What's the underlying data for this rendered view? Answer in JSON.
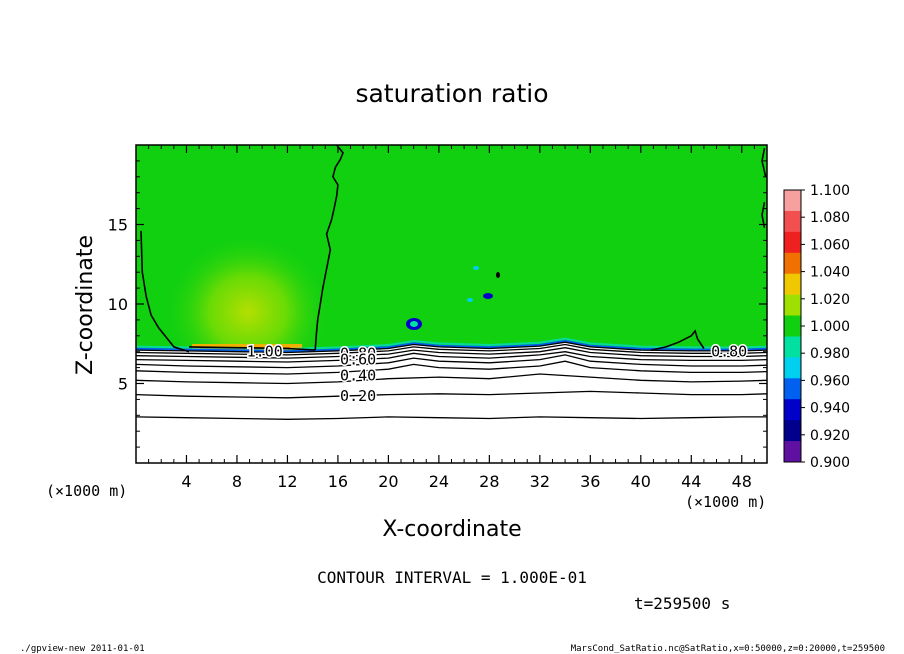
{
  "chart_data": {
    "type": "heatmap",
    "title": "saturation ratio",
    "xlabel": "X-coordinate",
    "ylabel": "Z-coordinate",
    "x_unit_left": "(×1000 m)",
    "x_unit_right": "(×1000 m)",
    "xlim": [
      0,
      50
    ],
    "ylim": [
      0,
      20
    ],
    "x_ticks": [
      4,
      8,
      12,
      16,
      20,
      24,
      28,
      32,
      36,
      40,
      44,
      48
    ],
    "x_tick_labels": [
      "4",
      "8",
      "12",
      "16",
      "20",
      "24",
      "28",
      "32",
      "36",
      "40",
      "44",
      "48"
    ],
    "y_ticks": [
      5,
      10,
      15
    ],
    "y_tick_labels": [
      "5",
      "10",
      "15"
    ],
    "colorbar": {
      "levels": [
        1.1,
        1.08,
        1.06,
        1.04,
        1.02,
        1.0,
        0.98,
        0.96,
        0.94,
        0.92,
        0.9
      ],
      "labels": [
        "1.100",
        "1.080",
        "1.060",
        "1.040",
        "1.020",
        "1.000",
        "0.980",
        "0.960",
        "0.940",
        "0.920",
        "0.900"
      ],
      "colors": [
        "#f7a0a0",
        "#f25050",
        "#ee2020",
        "#f07000",
        "#f0c800",
        "#a0e000",
        "#10d010",
        "#00e0a0",
        "#00d0f0",
        "#0060f0",
        "#0000c8",
        "#00008c",
        "#6010a0"
      ]
    },
    "contour_interval_text": "CONTOUR INTERVAL = 1.000E-01",
    "contour_labels": [
      {
        "text": "1.00",
        "x": 10.2,
        "z": 7.0
      },
      {
        "text": "0.80",
        "x": 17.6,
        "z": 6.9
      },
      {
        "text": "0.60",
        "x": 17.6,
        "z": 6.5
      },
      {
        "text": "0.40",
        "x": 17.6,
        "z": 5.5
      },
      {
        "text": "0.20",
        "x": 17.6,
        "z": 4.2
      },
      {
        "text": "0.80",
        "x": 47.0,
        "z": 7.0
      }
    ],
    "contours": [
      {
        "level": 0.1,
        "x": [
          0,
          4,
          8,
          12,
          16,
          20,
          24,
          28,
          32,
          36,
          40,
          44,
          48,
          50
        ],
        "z": [
          2.9,
          2.85,
          2.8,
          2.75,
          2.8,
          2.9,
          2.85,
          2.8,
          2.9,
          2.85,
          2.8,
          2.85,
          2.9,
          2.9
        ]
      },
      {
        "level": 0.2,
        "x": [
          0,
          4,
          8,
          12,
          16,
          20,
          24,
          28,
          32,
          36,
          40,
          44,
          48,
          50
        ],
        "z": [
          4.3,
          4.2,
          4.15,
          4.1,
          4.2,
          4.3,
          4.35,
          4.3,
          4.4,
          4.5,
          4.4,
          4.3,
          4.3,
          4.35
        ]
      },
      {
        "level": 0.3,
        "x": [
          0,
          4,
          8,
          12,
          16,
          20,
          24,
          28,
          32,
          36,
          40,
          44,
          48,
          50
        ],
        "z": [
          5.2,
          5.1,
          5.05,
          5.0,
          5.1,
          5.3,
          5.4,
          5.3,
          5.6,
          5.4,
          5.2,
          5.1,
          5.15,
          5.2
        ]
      },
      {
        "level": 0.4,
        "x": [
          0,
          4,
          8,
          12,
          16,
          20,
          22,
          24,
          28,
          32,
          34,
          36,
          40,
          44,
          48,
          50
        ],
        "z": [
          5.8,
          5.7,
          5.65,
          5.6,
          5.7,
          5.9,
          6.2,
          6.0,
          5.9,
          6.1,
          6.4,
          6.0,
          5.8,
          5.7,
          5.7,
          5.75
        ]
      },
      {
        "level": 0.5,
        "x": [
          0,
          4,
          8,
          12,
          16,
          20,
          22,
          24,
          28,
          32,
          34,
          36,
          40,
          44,
          48,
          50
        ],
        "z": [
          6.2,
          6.1,
          6.05,
          6.0,
          6.1,
          6.3,
          6.6,
          6.4,
          6.3,
          6.5,
          6.8,
          6.4,
          6.2,
          6.1,
          6.1,
          6.15
        ]
      },
      {
        "level": 0.6,
        "x": [
          0,
          4,
          8,
          12,
          16,
          20,
          22,
          24,
          28,
          32,
          34,
          36,
          40,
          44,
          48,
          50
        ],
        "z": [
          6.5,
          6.45,
          6.4,
          6.35,
          6.45,
          6.6,
          6.9,
          6.7,
          6.6,
          6.8,
          7.0,
          6.7,
          6.5,
          6.45,
          6.45,
          6.5
        ]
      },
      {
        "level": 0.7,
        "x": [
          0,
          4,
          8,
          12,
          16,
          20,
          22,
          24,
          28,
          32,
          34,
          36,
          40,
          44,
          48,
          50
        ],
        "z": [
          6.75,
          6.7,
          6.65,
          6.6,
          6.7,
          6.85,
          7.1,
          6.95,
          6.85,
          7.0,
          7.25,
          6.95,
          6.75,
          6.7,
          6.7,
          6.75
        ]
      },
      {
        "level": 0.8,
        "x": [
          0,
          4,
          8,
          12,
          16,
          20,
          22,
          24,
          28,
          32,
          34,
          36,
          40,
          44,
          48,
          50
        ],
        "z": [
          6.95,
          6.9,
          6.85,
          6.8,
          6.9,
          7.05,
          7.3,
          7.15,
          7.05,
          7.2,
          7.45,
          7.15,
          6.95,
          6.9,
          6.9,
          6.95
        ]
      },
      {
        "level": 0.9,
        "x": [
          0,
          4,
          8,
          12,
          16,
          20,
          22,
          24,
          28,
          32,
          34,
          36,
          40,
          44,
          48,
          50
        ],
        "z": [
          7.1,
          7.05,
          7.0,
          6.95,
          7.05,
          7.2,
          7.45,
          7.3,
          7.2,
          7.35,
          7.6,
          7.3,
          7.1,
          7.05,
          7.05,
          7.1
        ]
      },
      {
        "level": 1.0,
        "x": [
          0.4,
          0.5,
          0.8,
          1.2,
          1.8,
          2.4,
          3.0,
          4.2
        ],
        "z": [
          14.6,
          12.0,
          10.5,
          9.3,
          8.5,
          7.9,
          7.3,
          7.0
        ]
      },
      {
        "level": 1.0,
        "x": [
          4.2,
          8,
          12,
          14.2
        ],
        "z": [
          7.3,
          7.25,
          7.2,
          7.1
        ]
      },
      {
        "level": 1.0,
        "x": [
          14.2,
          14.3,
          14.4,
          14.6,
          14.8,
          15.0,
          15.2,
          15.4,
          15.1,
          15.5,
          15.7,
          15.9,
          16.0,
          15.6,
          15.8,
          16.2,
          16.4,
          15.9
        ],
        "z": [
          7.1,
          8.2,
          9.0,
          10.0,
          11.0,
          11.8,
          12.6,
          13.4,
          14.4,
          15.3,
          16.0,
          16.8,
          17.5,
          18.0,
          18.6,
          19.1,
          19.5,
          20.0
        ]
      },
      {
        "level": 1.0,
        "x": [
          40.8,
          42.0,
          43.0,
          44.0,
          44.3,
          44.5,
          45.0
        ],
        "z": [
          7.1,
          7.3,
          7.6,
          8.0,
          8.3,
          7.8,
          7.2
        ]
      },
      {
        "level": 1.0,
        "x": [
          49.8,
          49.6,
          49.8
        ],
        "z": [
          14.8,
          15.6,
          16.4
        ]
      },
      {
        "level": 1.0,
        "x": [
          49.9,
          49.6,
          49.8
        ],
        "z": [
          18.0,
          19.0,
          19.8
        ]
      }
    ],
    "annotation_time": "t=259500 s"
  },
  "footer": {
    "left": "./gpview-new 2011-01-01",
    "right": "MarsCond_SatRatio.nc@SatRatio,x=0:50000,z=0:20000,t=259500"
  }
}
